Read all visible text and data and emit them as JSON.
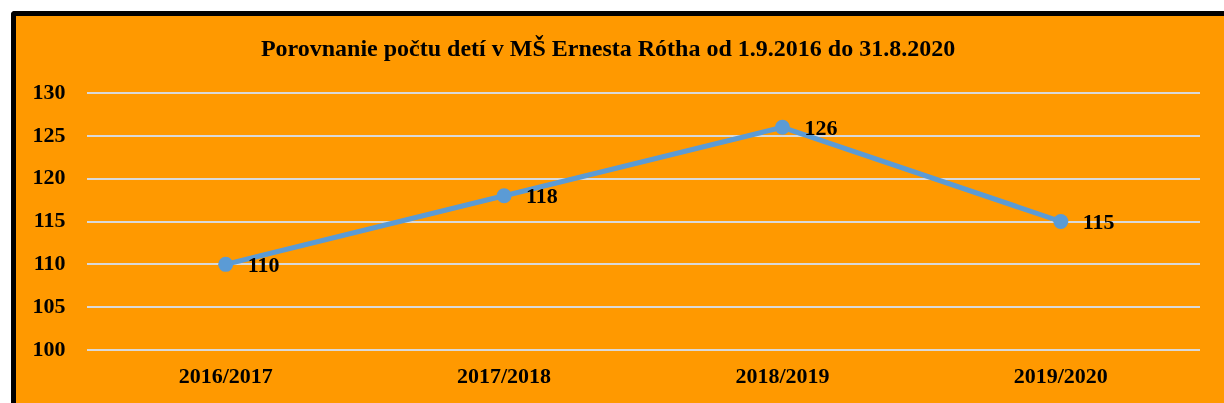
{
  "chart_data": {
    "type": "line",
    "title": "Porovnanie počtu detí v MŠ Ernesta Rótha od 1.9.2016 do 31.8.2020",
    "categories": [
      "2016/2017",
      "2017/2018",
      "2018/2019",
      "2019/2020"
    ],
    "series": [
      {
        "color": "#5b9bd5",
        "values": [
          110,
          118,
          126,
          115
        ]
      }
    ],
    "ylim": [
      100,
      130
    ],
    "yticks": [
      100,
      105,
      110,
      115,
      120,
      125,
      130
    ],
    "grid": "y",
    "data_labels": true,
    "marker": "circle",
    "line_style": "solid"
  }
}
